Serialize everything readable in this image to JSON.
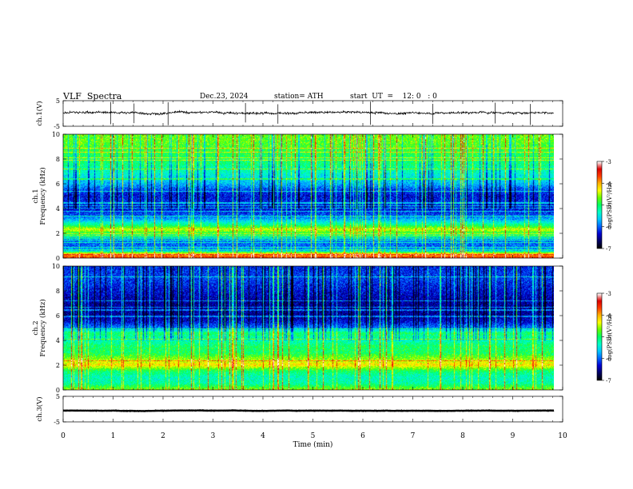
{
  "header": {
    "title": "VLF  Spectra",
    "date": "Dec.23, 2024",
    "station": "station= ATH",
    "start": "start  UT  =    12: 0   : 0"
  },
  "chart_data": [
    {
      "type": "line",
      "name": "ch1-waveform",
      "ylabel": "ch.1(V)",
      "ylim": [
        -5,
        5
      ],
      "yticks": [
        "5",
        "-5"
      ],
      "xlim": [
        0,
        10
      ],
      "x_range": [
        0,
        9.83
      ],
      "baseline": 0.3,
      "noise_amplitude": 0.6,
      "spikes": [
        {
          "x": 0.95,
          "y0": -4.2,
          "y1": 4.5
        },
        {
          "x": 1.42,
          "y0": -3.8,
          "y1": 3.9
        },
        {
          "x": 2.1,
          "y0": -4.6,
          "y1": 4.4
        },
        {
          "x": 3.65,
          "y0": -3.5,
          "y1": 4.1
        },
        {
          "x": 4.3,
          "y0": -4.0,
          "y1": 3.6
        },
        {
          "x": 6.15,
          "y0": -4.4,
          "y1": 4.6
        },
        {
          "x": 7.4,
          "y0": -4.1,
          "y1": 3.8
        },
        {
          "x": 8.65,
          "y0": -3.9,
          "y1": 4.2
        },
        {
          "x": 9.35,
          "y0": -4.5,
          "y1": 3.7
        }
      ]
    },
    {
      "type": "heatmap",
      "name": "ch1-spectrogram",
      "ylabel": "ch.1\nFrequency (kHz)",
      "ylim": [
        0,
        10
      ],
      "yticks": [
        "0",
        "2",
        "4",
        "6",
        "8",
        "10"
      ],
      "xlim": [
        0,
        10
      ],
      "x_range": [
        0,
        9.83
      ],
      "colorbar": {
        "label": "log(PSD)(V²/Hz)",
        "range": [
          -7,
          -3
        ],
        "ticks": [
          "-3",
          "-4",
          "-5",
          "-6",
          "-7"
        ]
      },
      "profile_log_psd": [
        {
          "f": 0.0,
          "v": -3.6
        },
        {
          "f": 0.3,
          "v": -4.0
        },
        {
          "f": 0.6,
          "v": -5.8
        },
        {
          "f": 1.0,
          "v": -6.0
        },
        {
          "f": 1.5,
          "v": -5.9
        },
        {
          "f": 2.0,
          "v": -4.9
        },
        {
          "f": 2.3,
          "v": -4.4
        },
        {
          "f": 2.6,
          "v": -5.0
        },
        {
          "f": 3.0,
          "v": -5.6
        },
        {
          "f": 3.5,
          "v": -6.1
        },
        {
          "f": 4.0,
          "v": -6.3
        },
        {
          "f": 4.5,
          "v": -6.2
        },
        {
          "f": 5.0,
          "v": -6.3
        },
        {
          "f": 5.5,
          "v": -6.1
        },
        {
          "f": 6.0,
          "v": -5.7
        },
        {
          "f": 6.5,
          "v": -5.5
        },
        {
          "f": 7.0,
          "v": -5.3
        },
        {
          "f": 7.5,
          "v": -5.1
        },
        {
          "f": 8.0,
          "v": -5.0
        },
        {
          "f": 8.5,
          "v": -4.9
        },
        {
          "f": 9.0,
          "v": -4.8
        },
        {
          "f": 9.5,
          "v": -4.7
        },
        {
          "f": 10.0,
          "v": -4.7
        }
      ]
    },
    {
      "type": "heatmap",
      "name": "ch2-spectrogram",
      "ylabel": "ch.2\nFrequency (kHz)",
      "ylim": [
        0,
        10
      ],
      "yticks": [
        "0",
        "2",
        "4",
        "6",
        "8",
        "10"
      ],
      "xlim": [
        0,
        10
      ],
      "x_range": [
        0,
        9.83
      ],
      "colorbar": {
        "label": "log(PSD)(V²/Hz)",
        "range": [
          -7,
          -3
        ],
        "ticks": [
          "-3",
          "-4",
          "-5",
          "-6",
          "-7"
        ]
      },
      "profile_log_psd": [
        {
          "f": 0.0,
          "v": -4.6
        },
        {
          "f": 0.5,
          "v": -5.2
        },
        {
          "f": 1.0,
          "v": -5.3
        },
        {
          "f": 1.5,
          "v": -5.0
        },
        {
          "f": 2.0,
          "v": -4.2
        },
        {
          "f": 2.5,
          "v": -4.6
        },
        {
          "f": 3.0,
          "v": -5.0
        },
        {
          "f": 3.5,
          "v": -5.0
        },
        {
          "f": 4.0,
          "v": -5.3
        },
        {
          "f": 4.6,
          "v": -5.0
        },
        {
          "f": 5.0,
          "v": -5.9
        },
        {
          "f": 5.5,
          "v": -6.3
        },
        {
          "f": 6.0,
          "v": -6.5
        },
        {
          "f": 7.0,
          "v": -6.5
        },
        {
          "f": 8.0,
          "v": -6.3
        },
        {
          "f": 9.0,
          "v": -6.1
        },
        {
          "f": 10.0,
          "v": -6.2
        }
      ]
    },
    {
      "type": "line",
      "name": "ch3-waveform",
      "ylabel": "ch.3(V)",
      "ylim": [
        -5,
        5
      ],
      "yticks": [
        "5",
        "-5"
      ],
      "xlim": [
        0,
        10
      ],
      "x_range": [
        0,
        9.83
      ],
      "baseline": -0.6,
      "noise_amplitude": 0.1,
      "xlabel": "Time  (min)",
      "xticks": [
        "0",
        "1",
        "2",
        "3",
        "4",
        "5",
        "6",
        "7",
        "8",
        "9",
        "10"
      ]
    }
  ],
  "colorscale": [
    "#000000",
    "#000064",
    "#0000d2",
    "#0064ff",
    "#00c8ff",
    "#00ffc8",
    "#00ff64",
    "#64ff00",
    "#ffff00",
    "#ffb400",
    "#ff3c00",
    "#dc0000",
    "#ffffff"
  ]
}
